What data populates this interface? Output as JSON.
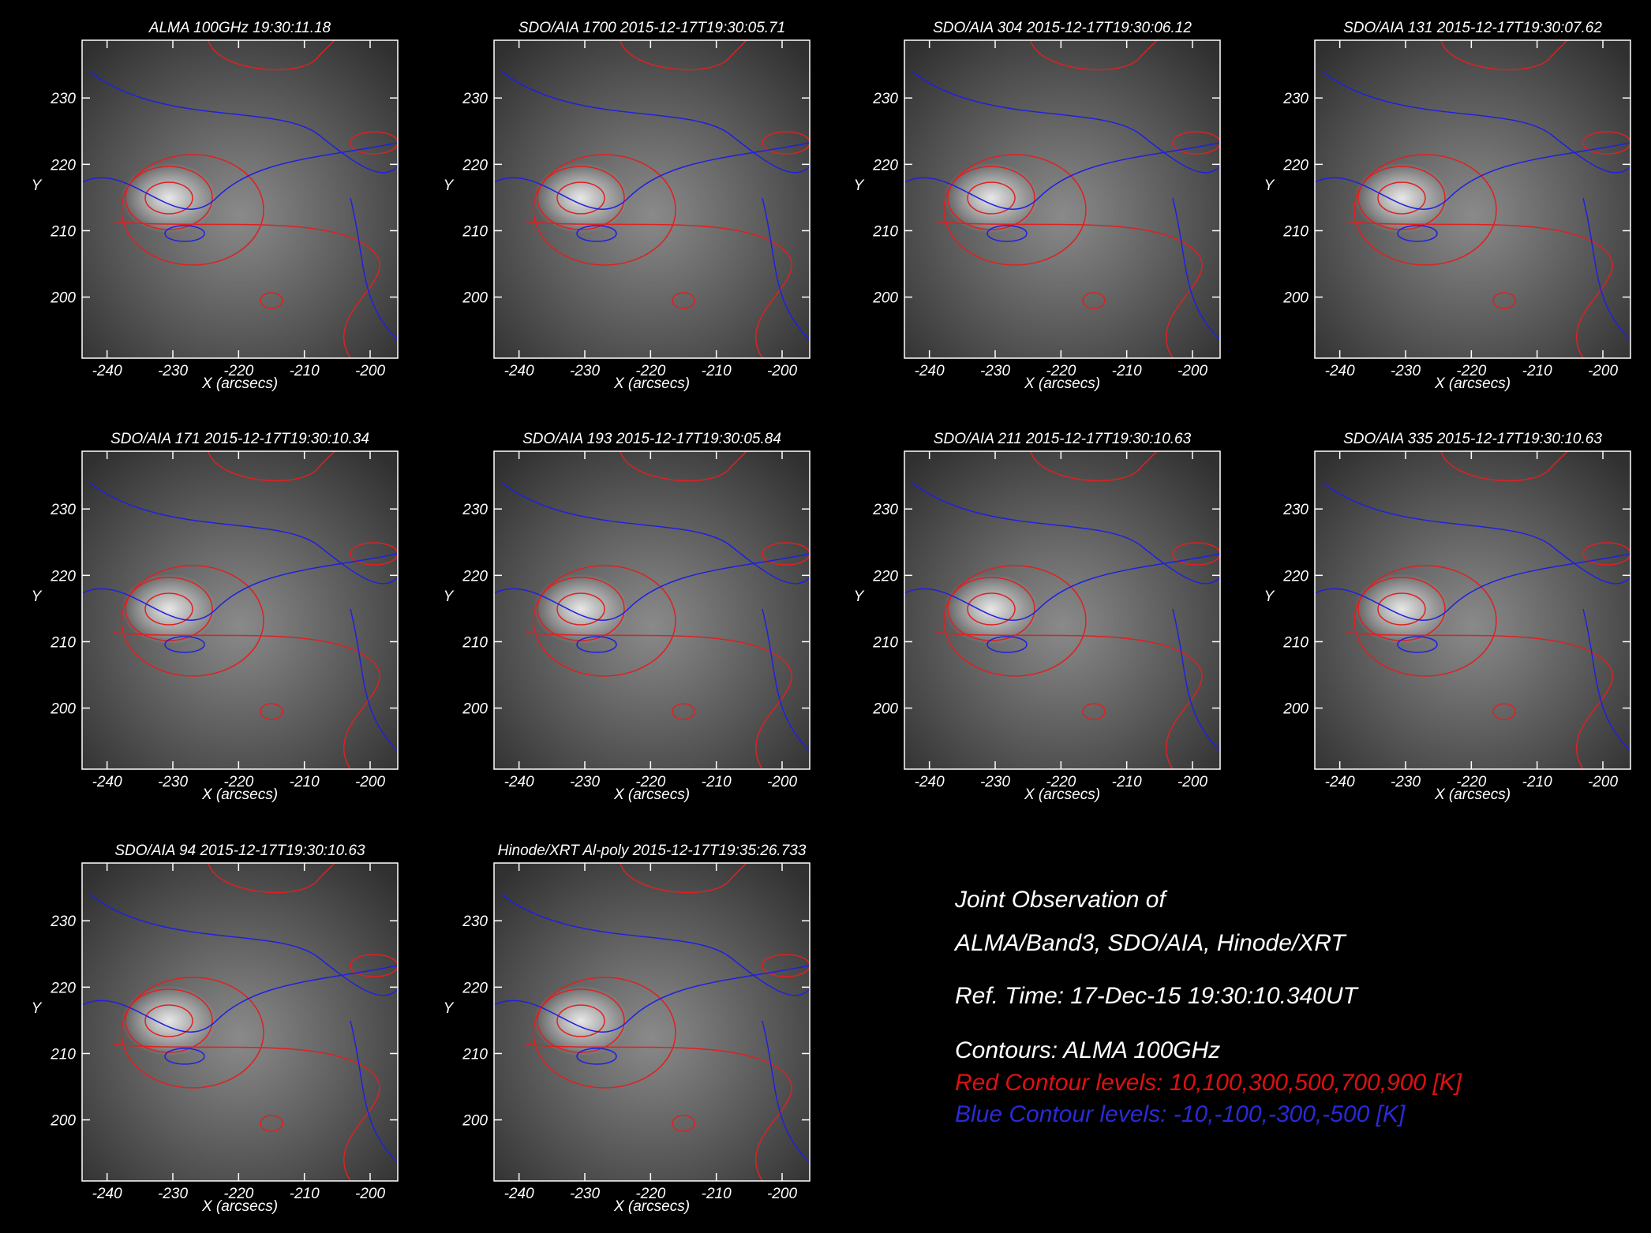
{
  "chart_data": [
    {
      "type": "image",
      "title": "ALMA 100GHz 19:30:11.18",
      "xlabel": "X (arcsecs)",
      "ylabel": "Y",
      "xlim": [
        -243.8,
        -195.8
      ],
      "ylim": [
        190.8,
        238.7
      ],
      "xticks": [
        -240,
        -230,
        -220,
        -210,
        -200
      ],
      "yticks": [
        200,
        210,
        220,
        230
      ]
    },
    {
      "type": "image",
      "title": "SDO/AIA 1700 2015-12-17T19:30:05.71",
      "xlabel": "X (arcsecs)",
      "ylabel": "Y",
      "xlim": [
        -243.8,
        -195.8
      ],
      "ylim": [
        190.8,
        238.7
      ],
      "xticks": [
        -240,
        -230,
        -220,
        -210,
        -200
      ],
      "yticks": [
        200,
        210,
        220,
        230
      ]
    },
    {
      "type": "image",
      "title": "SDO/AIA 304 2015-12-17T19:30:06.12",
      "xlabel": "X (arcsecs)",
      "ylabel": "Y",
      "xlim": [
        -243.8,
        -195.8
      ],
      "ylim": [
        190.8,
        238.7
      ],
      "xticks": [
        -240,
        -230,
        -220,
        -210,
        -200
      ],
      "yticks": [
        200,
        210,
        220,
        230
      ]
    },
    {
      "type": "image",
      "title": "SDO/AIA 131 2015-12-17T19:30:07.62",
      "xlabel": "X (arcsecs)",
      "ylabel": "Y",
      "xlim": [
        -243.8,
        -195.8
      ],
      "ylim": [
        190.8,
        238.7
      ],
      "xticks": [
        -240,
        -230,
        -220,
        -210,
        -200
      ],
      "yticks": [
        200,
        210,
        220,
        230
      ]
    },
    {
      "type": "image",
      "title": "SDO/AIA 171 2015-12-17T19:30:10.34",
      "xlabel": "X (arcsecs)",
      "ylabel": "Y",
      "xlim": [
        -243.8,
        -195.8
      ],
      "ylim": [
        190.8,
        238.7
      ],
      "xticks": [
        -240,
        -230,
        -220,
        -210,
        -200
      ],
      "yticks": [
        200,
        210,
        220,
        230
      ]
    },
    {
      "type": "image",
      "title": "SDO/AIA 193 2015-12-17T19:30:05.84",
      "xlabel": "X (arcsecs)",
      "ylabel": "Y",
      "xlim": [
        -243.8,
        -195.8
      ],
      "ylim": [
        190.8,
        238.7
      ],
      "xticks": [
        -240,
        -230,
        -220,
        -210,
        -200
      ],
      "yticks": [
        200,
        210,
        220,
        230
      ]
    },
    {
      "type": "image",
      "title": "SDO/AIA 211 2015-12-17T19:30:10.63",
      "xlabel": "X (arcsecs)",
      "ylabel": "Y",
      "xlim": [
        -243.8,
        -195.8
      ],
      "ylim": [
        190.8,
        238.7
      ],
      "xticks": [
        -240,
        -230,
        -220,
        -210,
        -200
      ],
      "yticks": [
        200,
        210,
        220,
        230
      ]
    },
    {
      "type": "image",
      "title": "SDO/AIA 335 2015-12-17T19:30:10.63",
      "xlabel": "X (arcsecs)",
      "ylabel": "Y",
      "xlim": [
        -243.8,
        -195.8
      ],
      "ylim": [
        190.8,
        238.7
      ],
      "xticks": [
        -240,
        -230,
        -220,
        -210,
        -200
      ],
      "yticks": [
        200,
        210,
        220,
        230
      ]
    },
    {
      "type": "image",
      "title": "SDO/AIA 94 2015-12-17T19:30:10.63",
      "xlabel": "X (arcsecs)",
      "ylabel": "Y",
      "xlim": [
        -243.8,
        -195.8
      ],
      "ylim": [
        190.8,
        238.7
      ],
      "xticks": [
        -240,
        -230,
        -220,
        -210,
        -200
      ],
      "yticks": [
        200,
        210,
        220,
        230
      ]
    },
    {
      "type": "image",
      "title": "Hinode/XRT Al-poly 2015-12-17T19:35:26.733",
      "xlabel": "X (arcsecs)",
      "ylabel": "Y",
      "xlim": [
        -243.8,
        -195.8
      ],
      "ylim": [
        190.8,
        238.7
      ],
      "xticks": [
        -240,
        -230,
        -220,
        -210,
        -200
      ],
      "yticks": [
        200,
        210,
        220,
        230
      ]
    }
  ],
  "note": {
    "lines": [
      "Joint Observation of",
      "ALMA/Band3, SDO/AIA, Hinode/XRT",
      "Ref. Time: 17-Dec-15 19:30:10.340UT",
      "Contours: ALMA 100GHz",
      "Red Contour levels: 10,100,300,500,700,900 [K]",
      "Blue Contour levels: -10,-100,-300,-500 [K]"
    ],
    "colors": [
      "#ffffff",
      "#ffffff",
      "#ffffff",
      "#ffffff",
      "#e01010",
      "#2a2ad8"
    ]
  }
}
